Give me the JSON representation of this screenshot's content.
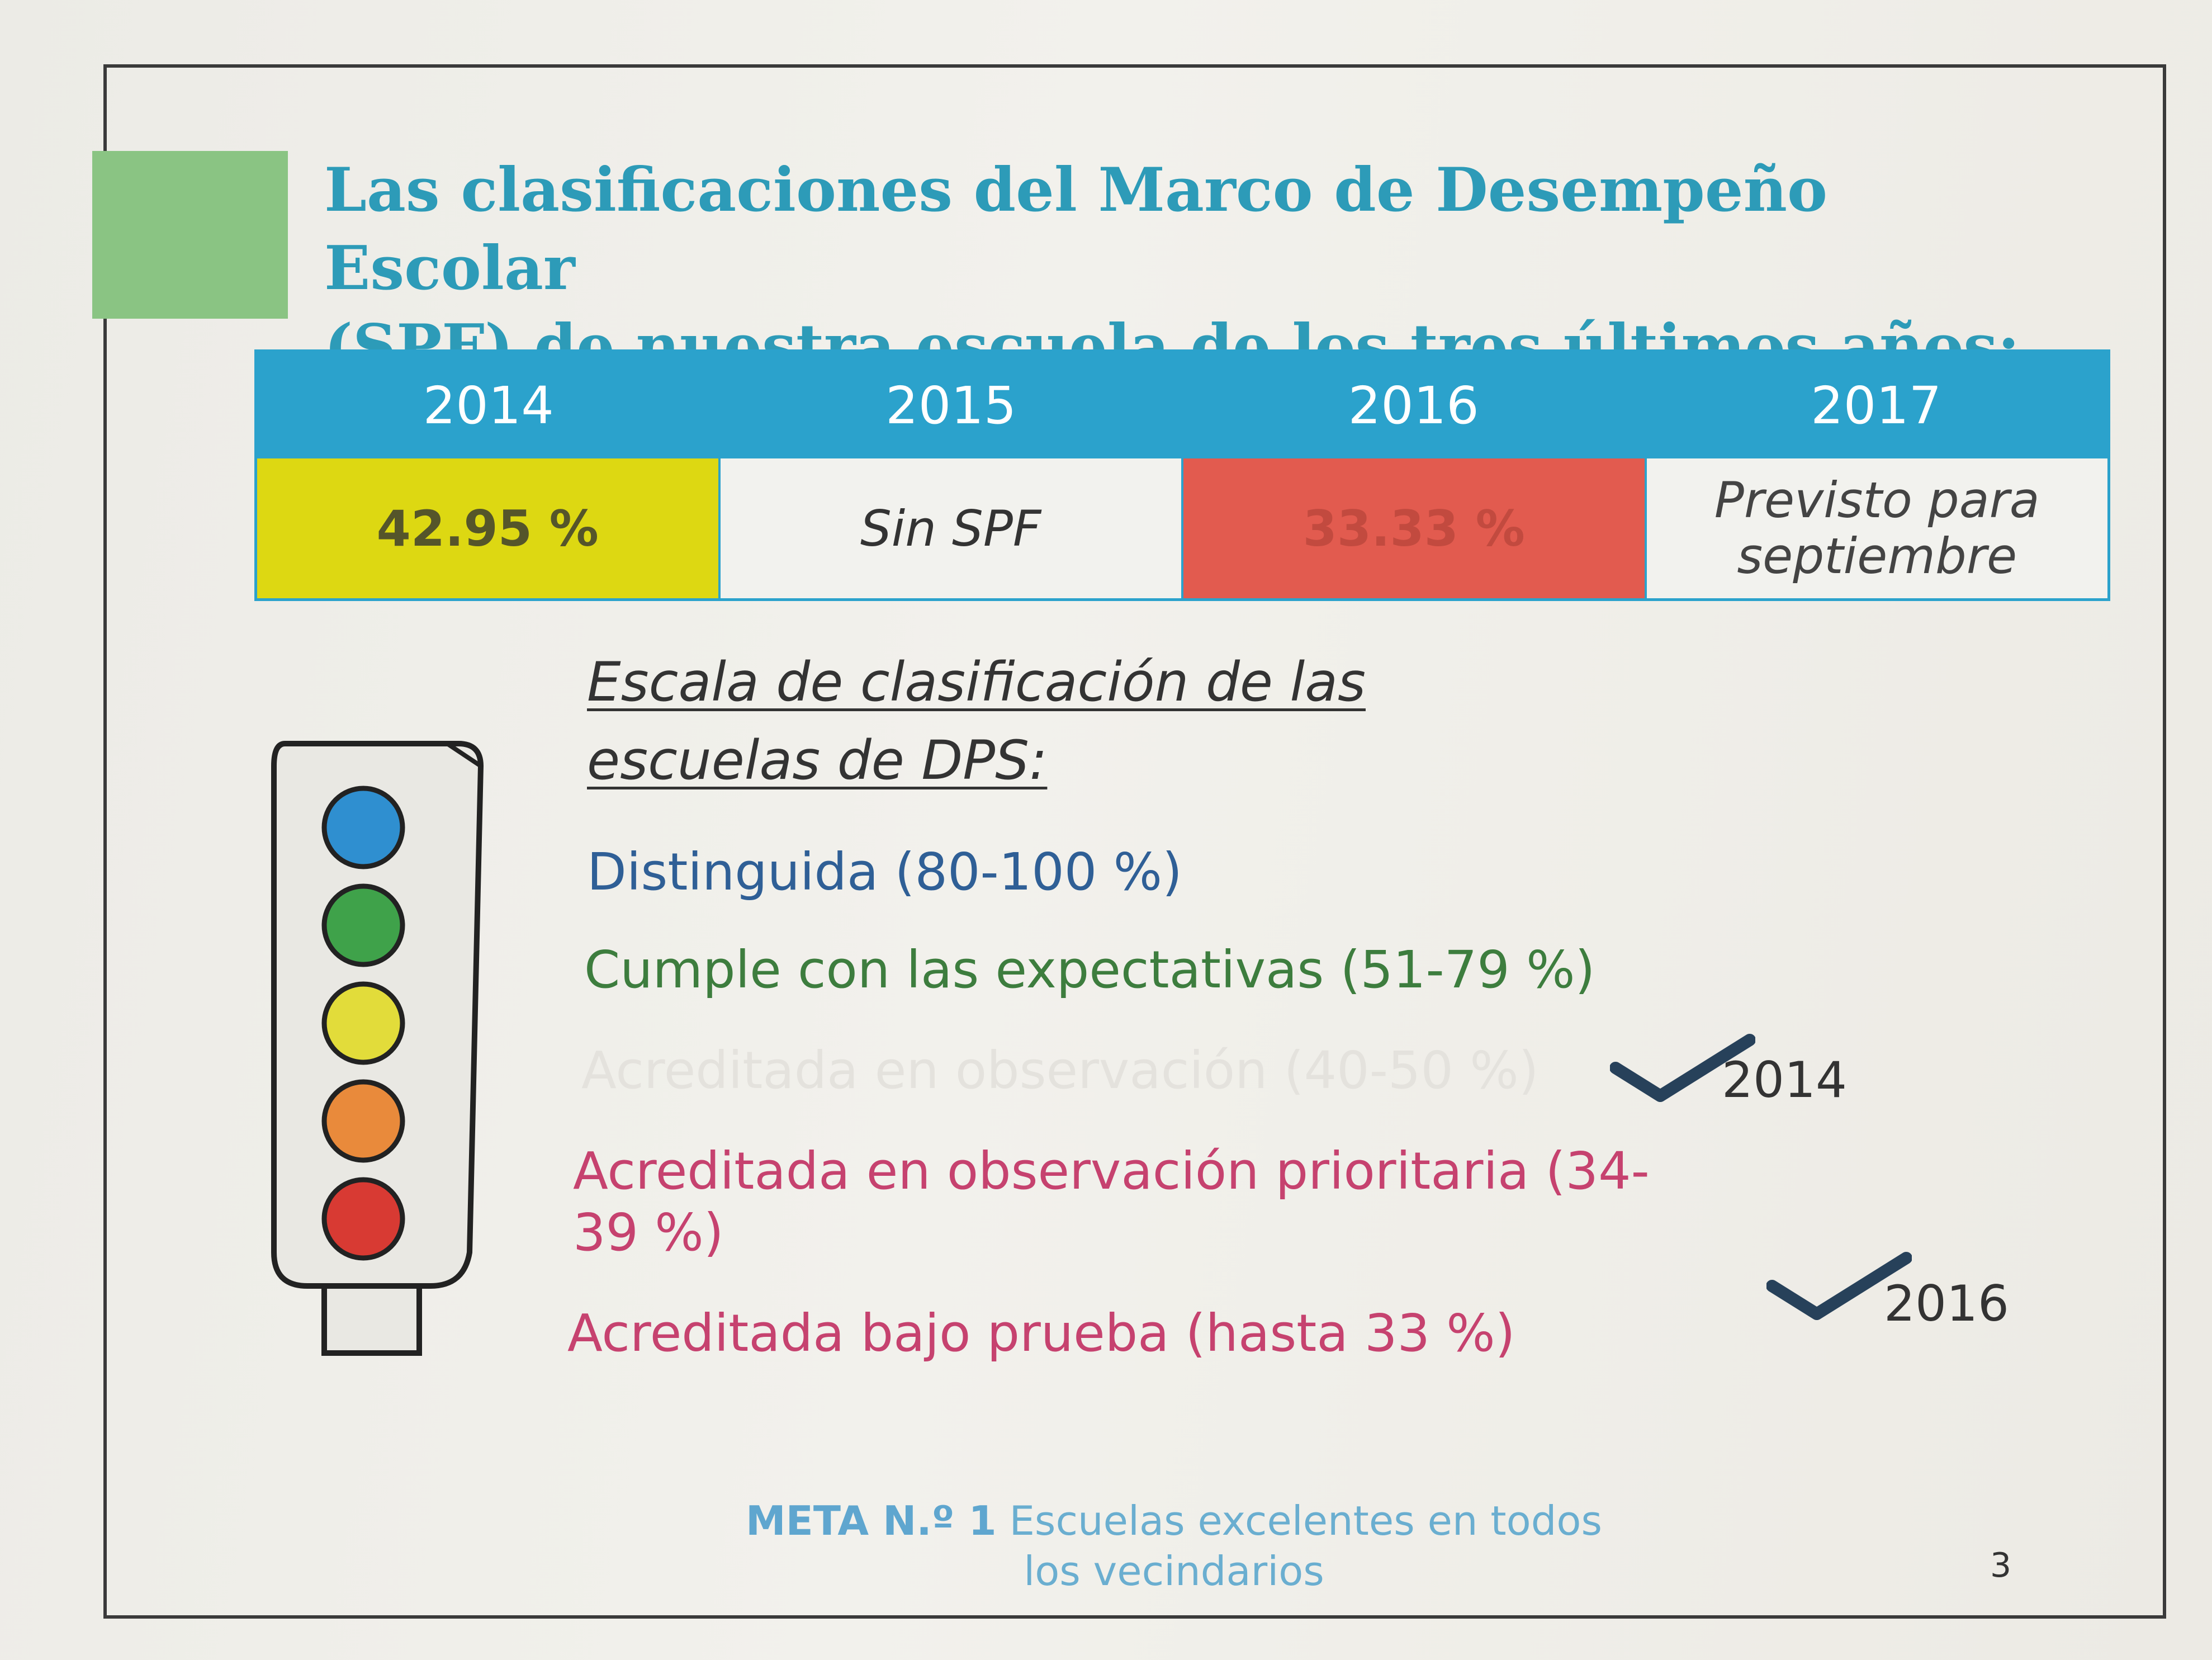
{
  "title": {
    "line1": "Las clasificaciones del Marco de Desempeño Escolar",
    "line2": "(SPF) de nuestra escuela de los tres últimos años:"
  },
  "spf_table": {
    "headers": [
      "2014",
      "2015",
      "2016",
      "2017"
    ],
    "values": [
      "42.95 %",
      "Sin SPF",
      "33.33 %",
      "Previsto para septiembre"
    ],
    "colors": [
      "#ddd812",
      "#f2f2ee",
      "#e25b4f",
      "#f2f2ee"
    ]
  },
  "scale": {
    "title": "Escala de clasificación de las escuelas de DPS:",
    "items": [
      "Distinguida (80-100 %)",
      "Cumple con las expectativas (51-79 %)",
      "Acreditada en observación (40-50 %)",
      "Acreditada en observación prioritaria (34-39 %)",
      "Acreditada bajo prueba (hasta 33 %)"
    ],
    "checks": [
      "2014",
      "2016"
    ]
  },
  "traffic_light": {
    "icon": "traffic-light-icon",
    "colors": [
      "#2f8fd0",
      "#3fa24a",
      "#e2dc3a",
      "#e98a3b",
      "#d83a33"
    ]
  },
  "footer": {
    "meta": "META N.º 1",
    "text": "Escuelas excelentes en todos los vecindarios",
    "page": "3"
  }
}
